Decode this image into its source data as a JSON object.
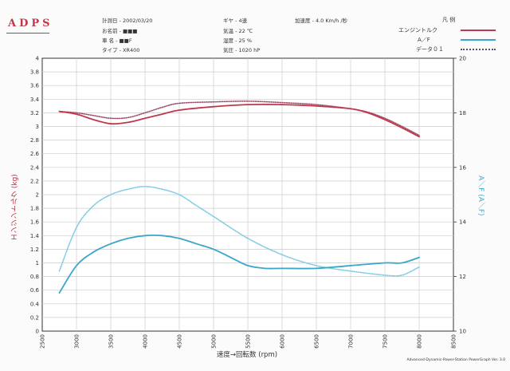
{
  "brand": "ADPS",
  "info": {
    "date": "計測日 - 2002/03/20",
    "name": "お名前 - ■■■",
    "vehicle": "車 名 - ■■F",
    "type": "タイプ - XR400",
    "gear": "ギヤ - 4速",
    "temperature": "気温 - 22 ℃",
    "humidity": "湿度 - 25 %",
    "pressure": "気圧 - 1020 hP",
    "acceleration": "加速度 - 4.0 Km/h /秒"
  },
  "legend": {
    "title": "凡 例",
    "items": [
      {
        "label": "エンジントルク",
        "style": "solid",
        "color": "#c0394a"
      },
      {
        "label": "A／F",
        "style": "solid",
        "color": "#3aa6c9"
      },
      {
        "label": "データ０１",
        "style": "dotted",
        "color": "#555577"
      }
    ]
  },
  "footer": "Advanced-Dynamic-Power-Station PowerGraph Ver. 3.0",
  "colors": {
    "torque": "#c0394a",
    "torque_ref": "#a0506a",
    "af": "#3aa6c9",
    "af_ref": "#7ecbe3",
    "grid": "#cccccc",
    "axis": "#333333"
  },
  "chart_data": {
    "type": "line",
    "xlabel": "速度→回転数 (rpm)",
    "ylabel": "エンジントルク (kg)",
    "y2label": "A／F (A／F)",
    "xlim": [
      2500,
      8500
    ],
    "ylim": [
      0,
      4
    ],
    "y2lim": [
      10,
      20
    ],
    "grid": true,
    "x_ticks": [
      "2500",
      "3000",
      "3500",
      "4000",
      "4500",
      "5000",
      "5500",
      "6000",
      "6500",
      "7000",
      "7500",
      "8000",
      "8500"
    ],
    "y_ticks": [
      "0",
      "0.2",
      "0.4",
      "0.6",
      "0.8",
      "1",
      "1.2",
      "1.4",
      "1.6",
      "1.8",
      "2",
      "2.2",
      "2.4",
      "2.6",
      "2.8",
      "3",
      "3.2",
      "3.4",
      "3.6",
      "3.8",
      "4"
    ],
    "y2_ticks": [
      "10",
      "12",
      "14",
      "16",
      "18",
      "20"
    ],
    "series": [
      {
        "name": "エンジントルク",
        "axis": "left",
        "style": "solid",
        "color": "#c0394a",
        "points": [
          [
            2750,
            3.22
          ],
          [
            3000,
            3.18
          ],
          [
            3250,
            3.1
          ],
          [
            3500,
            3.04
          ],
          [
            3750,
            3.06
          ],
          [
            4000,
            3.12
          ],
          [
            4250,
            3.18
          ],
          [
            4500,
            3.24
          ],
          [
            5000,
            3.29
          ],
          [
            5500,
            3.32
          ],
          [
            6000,
            3.32
          ],
          [
            6500,
            3.3
          ],
          [
            7000,
            3.26
          ],
          [
            7250,
            3.2
          ],
          [
            7500,
            3.1
          ],
          [
            7750,
            2.98
          ],
          [
            8000,
            2.85
          ]
        ]
      },
      {
        "name": "A／F",
        "axis": "right",
        "style": "solid",
        "color": "#3aa6c9",
        "points": [
          [
            2750,
            11.4
          ],
          [
            3000,
            12.4
          ],
          [
            3250,
            12.9
          ],
          [
            3500,
            13.2
          ],
          [
            3750,
            13.4
          ],
          [
            4000,
            13.5
          ],
          [
            4250,
            13.5
          ],
          [
            4500,
            13.4
          ],
          [
            4750,
            13.2
          ],
          [
            5000,
            13.0
          ],
          [
            5250,
            12.7
          ],
          [
            5500,
            12.4
          ],
          [
            5750,
            12.3
          ],
          [
            6000,
            12.3
          ],
          [
            6500,
            12.3
          ],
          [
            7000,
            12.4
          ],
          [
            7500,
            12.5
          ],
          [
            7750,
            12.5
          ],
          [
            8000,
            12.7
          ]
        ]
      },
      {
        "name": "データ０１ トルク",
        "axis": "left",
        "style": "dotted",
        "color": "#a0506a",
        "points": [
          [
            2750,
            3.22
          ],
          [
            3000,
            3.2
          ],
          [
            3250,
            3.16
          ],
          [
            3500,
            3.12
          ],
          [
            3750,
            3.13
          ],
          [
            4000,
            3.2
          ],
          [
            4250,
            3.28
          ],
          [
            4500,
            3.34
          ],
          [
            5000,
            3.36
          ],
          [
            5500,
            3.37
          ],
          [
            6000,
            3.35
          ],
          [
            6500,
            3.32
          ],
          [
            7000,
            3.26
          ],
          [
            7250,
            3.21
          ],
          [
            7500,
            3.12
          ],
          [
            7750,
            3.0
          ],
          [
            8000,
            2.87
          ]
        ]
      },
      {
        "name": "データ０１ A／F",
        "axis": "right",
        "style": "dotted",
        "color": "#7ecbe3",
        "points": [
          [
            2750,
            12.2
          ],
          [
            3000,
            13.8
          ],
          [
            3250,
            14.6
          ],
          [
            3500,
            15.0
          ],
          [
            3750,
            15.2
          ],
          [
            4000,
            15.3
          ],
          [
            4250,
            15.2
          ],
          [
            4500,
            15.0
          ],
          [
            4750,
            14.6
          ],
          [
            5000,
            14.2
          ],
          [
            5500,
            13.4
          ],
          [
            6000,
            12.8
          ],
          [
            6500,
            12.4
          ],
          [
            7000,
            12.2
          ],
          [
            7500,
            12.05
          ],
          [
            7750,
            12.05
          ],
          [
            8000,
            12.35
          ]
        ]
      }
    ]
  }
}
